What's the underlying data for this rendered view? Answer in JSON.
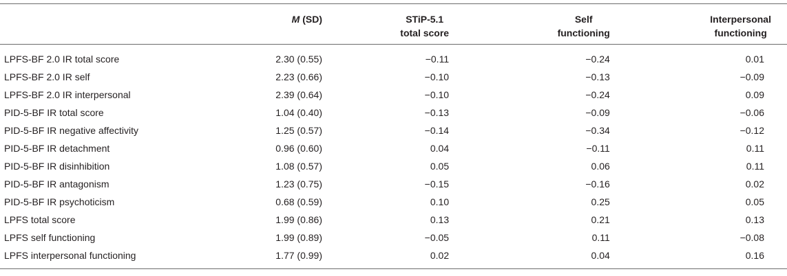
{
  "table": {
    "headers": {
      "m_italic": "M",
      "m_rest": " (SD)",
      "stip_line1": "STiP-5.1",
      "stip_line2": "total score",
      "self_line1": "Self",
      "self_line2": "functioning",
      "inter_line1": "Interpersonal",
      "inter_line2": "functioning"
    },
    "rows": [
      {
        "label": "LPFS-BF 2.0 IR total score",
        "m": "2.30 (0.55)",
        "stip": "−0.11",
        "self": "−0.24",
        "inter": "0.01"
      },
      {
        "label": "LPFS-BF 2.0 IR self",
        "m": "2.23 (0.66)",
        "stip": "−0.10",
        "self": "−0.13",
        "inter": "−0.09"
      },
      {
        "label": "LPFS-BF 2.0 IR interpersonal",
        "m": "2.39 (0.64)",
        "stip": "−0.10",
        "self": "−0.24",
        "inter": "0.09"
      },
      {
        "label": "PID-5-BF IR total score",
        "m": "1.04 (0.40)",
        "stip": "−0.13",
        "self": "−0.09",
        "inter": "−0.06"
      },
      {
        "label": "PID-5-BF IR negative affectivity",
        "m": "1.25 (0.57)",
        "stip": "−0.14",
        "self": "−0.34",
        "inter": "−0.12"
      },
      {
        "label": "PID-5-BF IR detachment",
        "m": "0.96 (0.60)",
        "stip": "0.04",
        "self": "−0.11",
        "inter": "0.11"
      },
      {
        "label": "PID-5-BF IR disinhibition",
        "m": "1.08 (0.57)",
        "stip": "0.05",
        "self": "0.06",
        "inter": "0.11"
      },
      {
        "label": "PID-5-BF IR antagonism",
        "m": "1.23 (0.75)",
        "stip": "−0.15",
        "self": "−0.16",
        "inter": "0.02"
      },
      {
        "label": "PID-5-BF IR psychoticism",
        "m": "0.68 (0.59)",
        "stip": "0.10",
        "self": "0.25",
        "inter": "0.05"
      },
      {
        "label": "LPFS total score",
        "m": "1.99 (0.86)",
        "stip": "0.13",
        "self": "0.21",
        "inter": "0.13"
      },
      {
        "label": "LPFS self functioning",
        "m": "1.99 (0.89)",
        "stip": "−0.05",
        "self": "0.11",
        "inter": "−0.08"
      },
      {
        "label": "LPFS interpersonal functioning",
        "m": "1.77 (0.99)",
        "stip": "0.02",
        "self": "0.04",
        "inter": "0.16"
      }
    ]
  }
}
